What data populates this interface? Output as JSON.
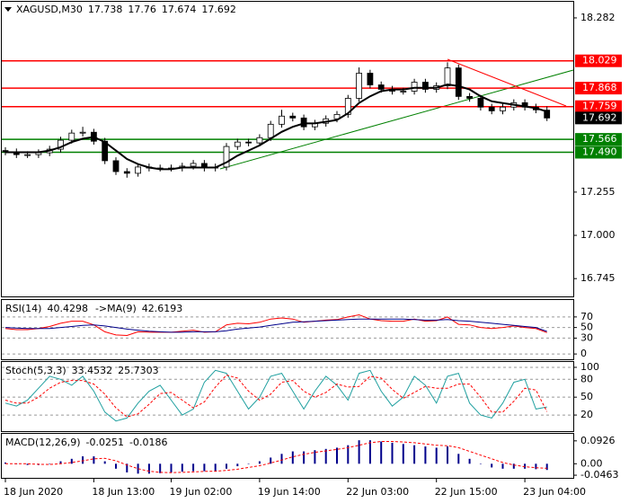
{
  "chart_data": [
    {
      "type": "candlestick",
      "title": "XAGUSD,M30",
      "categories": [
        "18 Jun 2020",
        null,
        null,
        null,
        null,
        null,
        null,
        null,
        "18 Jun 13:00",
        null,
        null,
        null,
        null,
        null,
        null,
        "19 Jun 02:00",
        null,
        null,
        null,
        null,
        null,
        null,
        null,
        "19 Jun 14:00",
        null,
        null,
        null,
        null,
        null,
        null,
        null,
        "22 Jun 03:00",
        null,
        null,
        null,
        null,
        null,
        null,
        null,
        "22 Jun 15:00",
        null,
        null,
        null,
        null,
        null,
        null,
        null,
        "23 Jun 04:00",
        null,
        null
      ],
      "open": [
        17.5,
        17.492,
        17.476,
        17.476,
        17.487,
        17.508,
        17.561,
        17.603,
        17.608,
        17.555,
        17.44,
        17.376,
        17.366,
        17.403,
        17.397,
        17.397,
        17.397,
        17.408,
        17.424,
        17.397,
        17.403,
        17.524,
        17.55,
        17.545,
        17.576,
        17.655,
        17.703,
        17.692,
        17.64,
        17.661,
        17.687,
        17.713,
        17.808,
        17.956,
        17.887,
        17.861,
        17.85,
        17.85,
        17.903,
        17.861,
        17.882,
        17.987,
        17.819,
        17.808,
        17.756,
        17.734,
        17.756,
        17.782,
        17.756,
        17.738
      ],
      "high": [
        17.52,
        17.512,
        17.496,
        17.507,
        17.528,
        17.581,
        17.623,
        17.64,
        17.628,
        17.575,
        17.46,
        17.396,
        17.423,
        17.423,
        17.417,
        17.417,
        17.428,
        17.444,
        17.444,
        17.423,
        17.544,
        17.57,
        17.57,
        17.596,
        17.675,
        17.74,
        17.723,
        17.712,
        17.681,
        17.707,
        17.733,
        17.828,
        17.99,
        17.976,
        17.907,
        17.881,
        17.87,
        17.923,
        17.923,
        17.902,
        18.02,
        18.007,
        17.839,
        17.828,
        17.776,
        17.776,
        17.802,
        17.802,
        17.776,
        17.76
      ],
      "low": [
        17.472,
        17.456,
        17.456,
        17.456,
        17.467,
        17.488,
        17.541,
        17.583,
        17.535,
        17.42,
        17.356,
        17.34,
        17.346,
        17.377,
        17.377,
        17.377,
        17.377,
        17.388,
        17.377,
        17.377,
        17.383,
        17.504,
        17.525,
        17.525,
        17.556,
        17.635,
        17.672,
        17.62,
        17.62,
        17.641,
        17.667,
        17.693,
        17.788,
        17.867,
        17.841,
        17.83,
        17.83,
        17.83,
        17.841,
        17.841,
        17.862,
        17.799,
        17.788,
        17.736,
        17.714,
        17.714,
        17.736,
        17.736,
        17.72,
        17.674
      ],
      "close": [
        17.492,
        17.476,
        17.476,
        17.487,
        17.508,
        17.561,
        17.603,
        17.608,
        17.555,
        17.44,
        17.376,
        17.366,
        17.403,
        17.397,
        17.397,
        17.397,
        17.408,
        17.424,
        17.397,
        17.403,
        17.524,
        17.55,
        17.545,
        17.576,
        17.655,
        17.703,
        17.692,
        17.64,
        17.661,
        17.687,
        17.713,
        17.808,
        17.956,
        17.887,
        17.861,
        17.85,
        17.85,
        17.903,
        17.861,
        17.882,
        17.987,
        17.819,
        17.808,
        17.756,
        17.734,
        17.756,
        17.782,
        17.756,
        17.74,
        17.692
      ],
      "ma": {
        "color": "#000000",
        "values": [
          17.49,
          17.49,
          17.49,
          17.49,
          17.5,
          17.52,
          17.55,
          17.57,
          17.58,
          17.55,
          17.5,
          17.45,
          17.42,
          17.4,
          17.39,
          17.39,
          17.4,
          17.4,
          17.4,
          17.4,
          17.43,
          17.47,
          17.5,
          17.53,
          17.57,
          17.61,
          17.64,
          17.66,
          17.66,
          17.67,
          17.68,
          17.72,
          17.78,
          17.82,
          17.85,
          17.86,
          17.86,
          17.87,
          17.87,
          17.87,
          17.89,
          17.88,
          17.86,
          17.82,
          17.79,
          17.78,
          17.77,
          17.76,
          17.75,
          17.73
        ]
      },
      "levels": [
        {
          "value": 18.029,
          "color": "#ff0000"
        },
        {
          "value": 17.868,
          "color": "#ff0000"
        },
        {
          "value": 17.759,
          "color": "#ff0000"
        },
        {
          "value": 17.566,
          "color": "#008000"
        },
        {
          "value": 17.49,
          "label": "17.490",
          "color": "#008000"
        }
      ],
      "ylim": [
        16.64,
        18.377
      ],
      "yticks": [
        18.282,
        17.255,
        {
          "value": 17,
          "label": "17.000"
        },
        16.745
      ]
    },
    {
      "type": "line",
      "series": [
        {
          "name": "RSI(14)",
          "color": "#ff0000",
          "values": [
            48,
            46,
            46,
            48,
            52,
            58,
            62,
            62,
            55,
            42,
            36,
            35,
            42,
            41,
            41,
            41,
            43,
            45,
            41,
            42,
            55,
            58,
            57,
            60,
            66,
            68,
            66,
            60,
            62,
            64,
            65,
            70,
            74,
            66,
            63,
            62,
            62,
            66,
            62,
            63,
            70,
            56,
            55,
            50,
            48,
            50,
            53,
            50,
            48,
            40.4298
          ]
        },
        {
          "name": "->MA(9)",
          "color": "#00008b",
          "values": [
            50,
            49,
            48,
            48,
            48,
            50,
            52,
            54,
            55,
            53,
            50,
            47,
            45,
            43,
            42,
            41,
            41,
            42,
            42,
            42,
            44,
            47,
            49,
            51,
            54,
            57,
            60,
            61,
            62,
            63,
            64,
            65,
            66,
            66,
            66,
            66,
            66,
            65,
            64,
            64,
            65,
            63,
            62,
            60,
            58,
            56,
            54,
            52,
            50,
            42.6193
          ]
        }
      ],
      "ylim": [
        -10,
        102
      ],
      "yticks": [
        0,
        30,
        50,
        70
      ],
      "grid": true
    },
    {
      "type": "line",
      "series": [
        {
          "name": "Stoch(5,3,3)",
          "color": "#20a0a0",
          "values": [
            40,
            35,
            45,
            65,
            85,
            80,
            70,
            85,
            60,
            25,
            10,
            15,
            40,
            60,
            70,
            45,
            20,
            30,
            75,
            95,
            90,
            60,
            30,
            50,
            85,
            90,
            60,
            30,
            60,
            85,
            70,
            45,
            90,
            95,
            60,
            35,
            50,
            85,
            70,
            40,
            85,
            90,
            40,
            20,
            15,
            40,
            75,
            80,
            30,
            33.4532
          ]
        },
        {
          "color": "#ff0000",
          "dash": true,
          "values": [
            45,
            40,
            40,
            50,
            65,
            75,
            78,
            78,
            72,
            55,
            32,
            17,
            22,
            38,
            56,
            58,
            45,
            32,
            42,
            67,
            87,
            82,
            60,
            45,
            55,
            75,
            78,
            60,
            50,
            58,
            72,
            67,
            68,
            85,
            82,
            63,
            48,
            58,
            68,
            65,
            65,
            72,
            72,
            50,
            25,
            25,
            43,
            65,
            62,
            25.7303
          ]
        }
      ],
      "ylim": [
        -7,
        109
      ],
      "yticks": [
        20,
        50,
        80,
        100
      ],
      "grid": true
    },
    {
      "type": "bar",
      "series": [
        {
          "name": "MACD(12,26,9)",
          "type": "bar",
          "color": "#00008b",
          "values": [
            0.005,
            0,
            -0.005,
            -0.005,
            0,
            0.01,
            0.02,
            0.03,
            0.03,
            0.01,
            -0.02,
            -0.035,
            -0.04,
            -0.04,
            -0.038,
            -0.035,
            -0.032,
            -0.03,
            -0.03,
            -0.03,
            -0.02,
            -0.01,
            0,
            0.01,
            0.025,
            0.04,
            0.05,
            0.05,
            0.055,
            0.06,
            0.065,
            0.075,
            0.095,
            0.095,
            0.09,
            0.085,
            0.08,
            0.075,
            0.07,
            0.065,
            0.07,
            0.04,
            0.02,
            0,
            -0.015,
            -0.02,
            -0.02,
            -0.02,
            -0.022,
            -0.0251
          ]
        },
        {
          "type": "line",
          "color": "#ff0000",
          "dash": true,
          "values": [
            0,
            0,
            0,
            -0.002,
            -0.003,
            0,
            0.005,
            0.012,
            0.02,
            0.022,
            0.012,
            -0.005,
            -0.02,
            -0.03,
            -0.035,
            -0.036,
            -0.035,
            -0.033,
            -0.031,
            -0.03,
            -0.027,
            -0.022,
            -0.015,
            -0.008,
            0.003,
            0.015,
            0.028,
            0.038,
            0.046,
            0.052,
            0.058,
            0.065,
            0.075,
            0.085,
            0.09,
            0.09,
            0.088,
            0.085,
            0.08,
            0.075,
            0.073,
            0.065,
            0.05,
            0.035,
            0.02,
            0.005,
            -0.005,
            -0.012,
            -0.016,
            -0.0186
          ]
        }
      ],
      "ylim": [
        -0.057,
        0.121
      ],
      "yticks": [
        0.0926,
        {
          "value": 0,
          "label": "0.00"
        },
        -0.0463
      ]
    }
  ]
}
